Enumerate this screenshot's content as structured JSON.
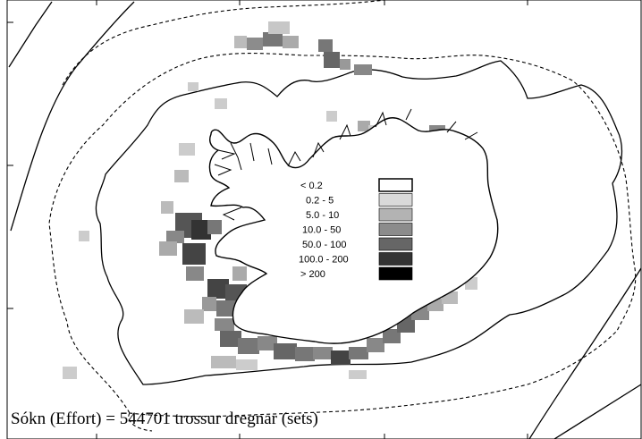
{
  "caption": "Sókn (Effort) = 544701 trossur dregnar (sets)",
  "legend": {
    "items": [
      {
        "label": "< 0.2",
        "color": "#ffffff"
      },
      {
        "label": "0.2 -   5",
        "color": "#d9d9d9"
      },
      {
        "label": "5.0 -  10",
        "color": "#b3b3b3"
      },
      {
        "label": "10.0 -  50",
        "color": "#8c8c8c"
      },
      {
        "label": "50.0 - 100",
        "color": "#666666"
      },
      {
        "label": "100.0 - 200",
        "color": "#333333"
      },
      {
        "label": "> 200",
        "color": "#000000"
      }
    ]
  },
  "map_style": {
    "coast_color": "#000000",
    "contour_color": "#000000",
    "depth_line_style": "dashed"
  }
}
